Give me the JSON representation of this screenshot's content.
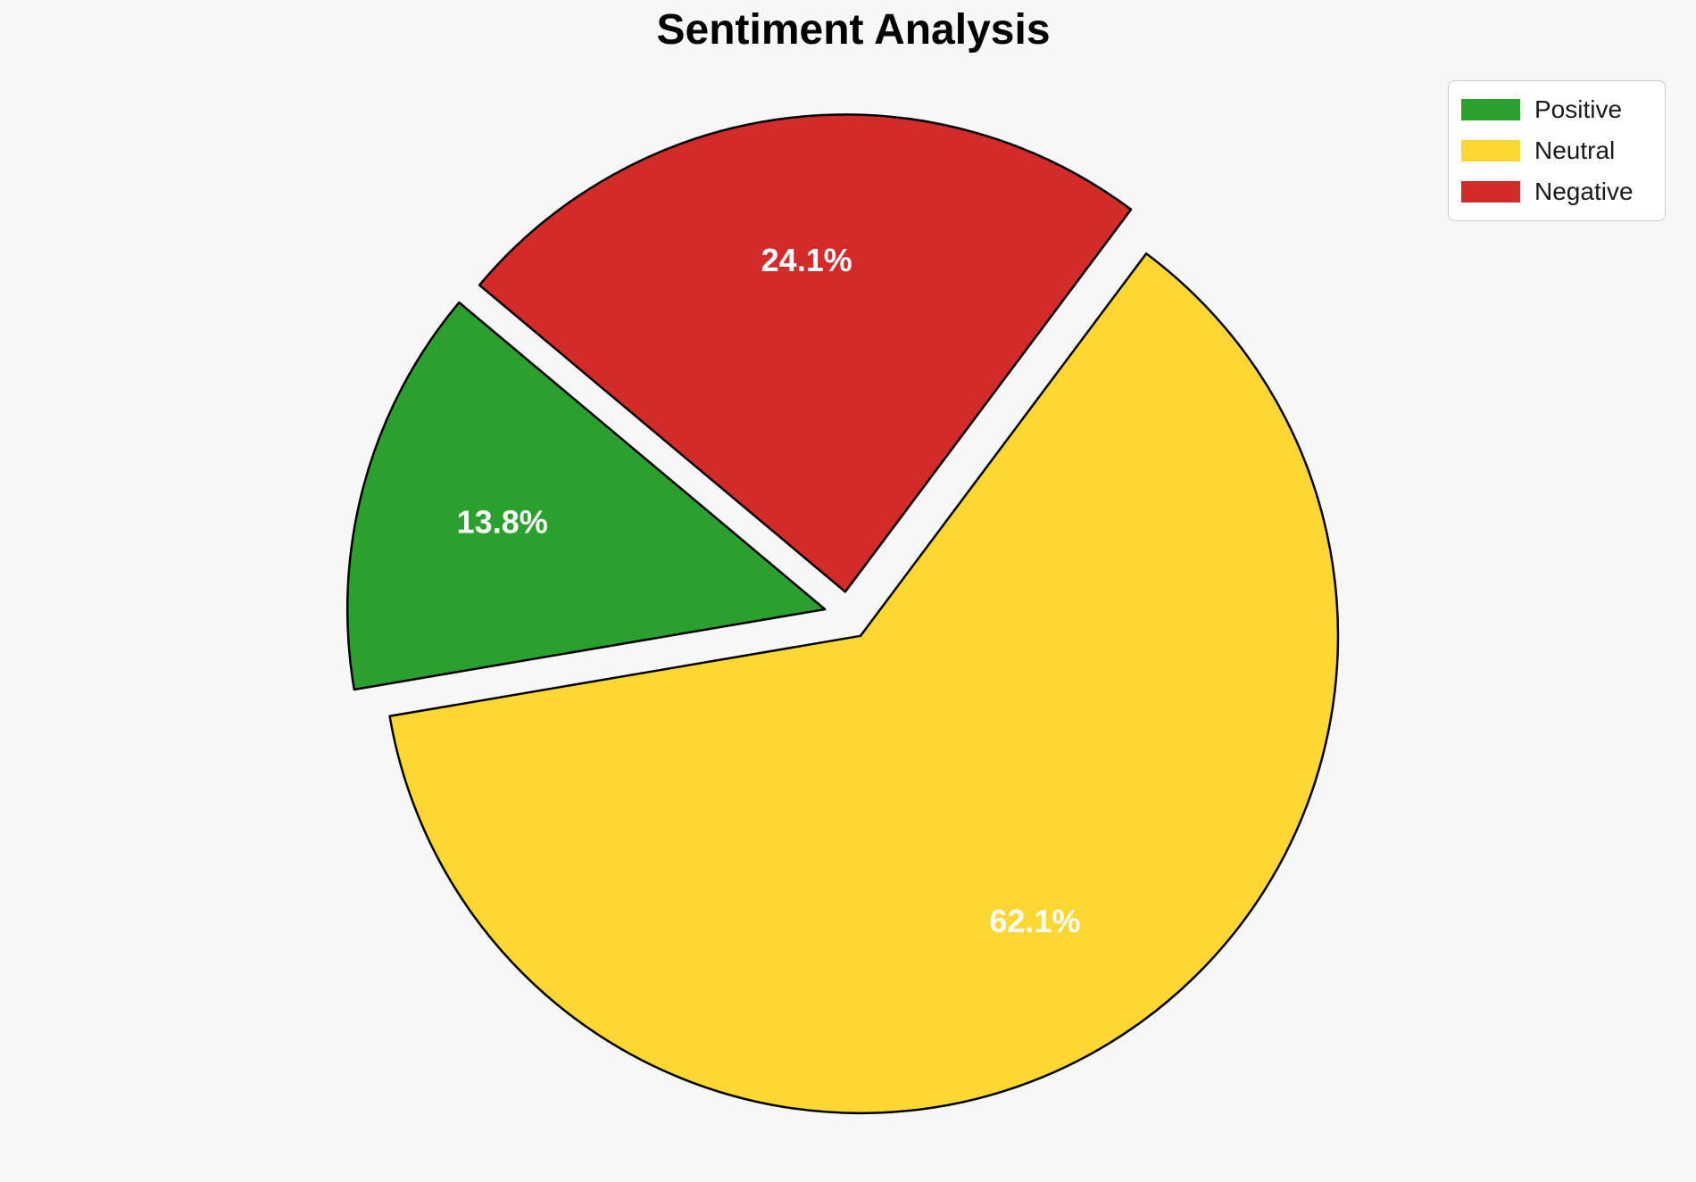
{
  "chart_data": {
    "type": "pie",
    "title": "Sentiment Analysis",
    "labels": [
      "Positive",
      "Neutral",
      "Negative"
    ],
    "values": [
      13.8,
      62.1,
      24.1
    ],
    "display_labels": [
      "13.8%",
      "62.1%",
      "24.1%"
    ],
    "colors": [
      "#2BA02E",
      "#FED733",
      "#D32A2A"
    ],
    "edge_color": "#000000",
    "edge_width": 2.5,
    "background_color": "#F7F7F7",
    "label_color": "#FFFFFF",
    "legend": {
      "position": "upper right",
      "items": [
        "Positive",
        "Neutral",
        "Negative"
      ]
    },
    "geometry": {
      "start_angle_deg": 140,
      "direction": "counterclockwise",
      "explode": 0.05,
      "pct_distance": 0.7
    }
  }
}
